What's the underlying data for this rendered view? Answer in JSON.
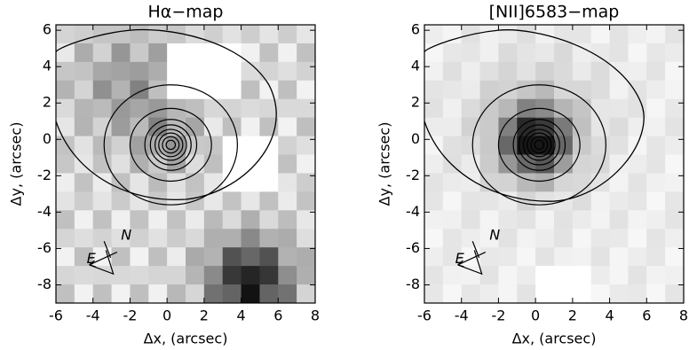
{
  "chart_data": [
    {
      "type": "image",
      "title": "Hα−map",
      "xlabel": "Δx, (arcsec)",
      "ylabel": "Δy, (arcsec)",
      "xlim": [
        -6,
        8
      ],
      "ylim": [
        -9,
        6.3
      ],
      "xticks": [
        -6,
        -4,
        -2,
        0,
        2,
        4,
        6,
        8
      ],
      "yticks": [
        -8,
        -6,
        -4,
        -2,
        0,
        2,
        4,
        6
      ],
      "compass": [
        "N",
        "E"
      ],
      "colormap": "gray"
    },
    {
      "type": "image",
      "title": "[NII]6583−map",
      "xlabel": "Δx, (arcsec)",
      "ylabel": "Δy, (arcsec)",
      "xlim": [
        -6,
        8
      ],
      "ylim": [
        -9,
        6.3
      ],
      "xticks": [
        -6,
        -4,
        -2,
        0,
        2,
        4,
        6,
        8
      ],
      "yticks": [
        -8,
        -6,
        -4,
        -2,
        0,
        2,
        4,
        6
      ],
      "compass": [
        "N",
        "E"
      ],
      "colormap": "gray"
    }
  ]
}
